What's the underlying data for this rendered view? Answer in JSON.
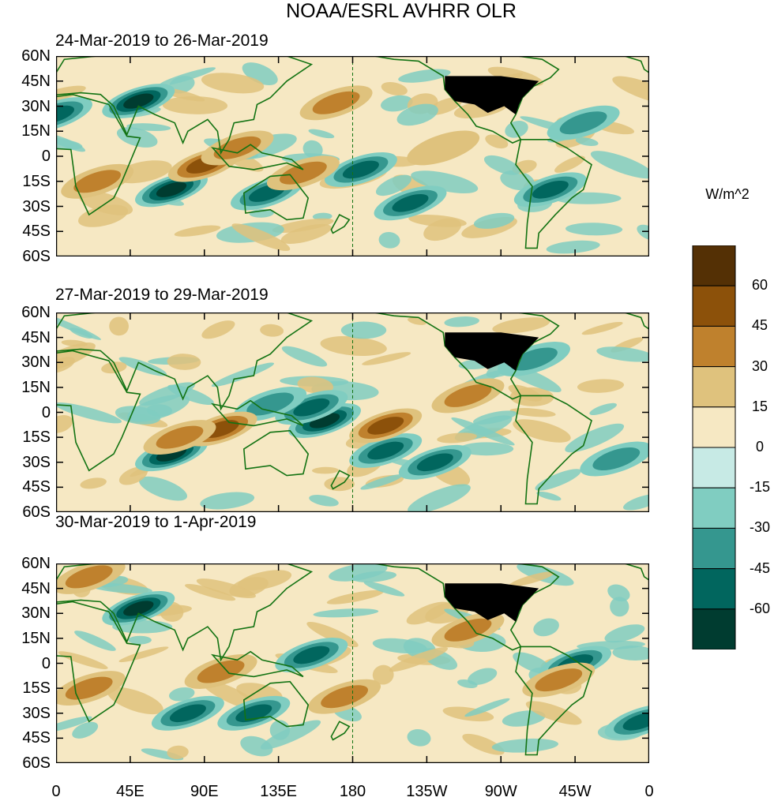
{
  "chart_data": {
    "type": "heatmap",
    "title": "NOAA/ESRL AVHRR OLR",
    "panels": [
      {
        "title": "24-Mar-2019 to 26-Mar-2019",
        "anomalies": [
          {
            "lon": 185,
            "lat": -8,
            "value": -55
          },
          {
            "lon": 215,
            "lat": -28,
            "value": -55
          },
          {
            "lon": 128,
            "lat": -22,
            "value": -45
          },
          {
            "lon": 70,
            "lat": -20,
            "value": -60
          },
          {
            "lon": 50,
            "lat": 33,
            "value": -60
          },
          {
            "lon": 0,
            "lat": 25,
            "value": -45
          },
          {
            "lon": 90,
            "lat": -5,
            "value": 45
          },
          {
            "lon": 110,
            "lat": 5,
            "value": 40
          },
          {
            "lon": 150,
            "lat": -10,
            "value": 35
          },
          {
            "lon": 25,
            "lat": -15,
            "value": 30
          },
          {
            "lon": 170,
            "lat": 32,
            "value": 30
          },
          {
            "lon": 235,
            "lat": 5,
            "value": 25
          },
          {
            "lon": 300,
            "lat": -20,
            "value": -45
          },
          {
            "lon": 320,
            "lat": 20,
            "value": -30
          }
        ]
      },
      {
        "title": "27-Mar-2019 to 29-Mar-2019",
        "anomalies": [
          {
            "lon": 163,
            "lat": -5,
            "value": -60
          },
          {
            "lon": 155,
            "lat": 3,
            "value": -50
          },
          {
            "lon": 200,
            "lat": -23,
            "value": -50
          },
          {
            "lon": 230,
            "lat": -30,
            "value": -55
          },
          {
            "lon": 70,
            "lat": -25,
            "value": -60
          },
          {
            "lon": 130,
            "lat": 5,
            "value": -40
          },
          {
            "lon": 290,
            "lat": 32,
            "value": -40
          },
          {
            "lon": 100,
            "lat": -10,
            "value": 45
          },
          {
            "lon": 200,
            "lat": -8,
            "value": 45
          },
          {
            "lon": 75,
            "lat": -15,
            "value": 35
          },
          {
            "lon": 250,
            "lat": 10,
            "value": 35
          },
          {
            "lon": 340,
            "lat": -28,
            "value": -40
          }
        ]
      },
      {
        "title": "30-Mar-2019 to 1-Apr-2019",
        "anomalies": [
          {
            "lon": 50,
            "lat": 33,
            "value": -60
          },
          {
            "lon": 315,
            "lat": 0,
            "value": -55
          },
          {
            "lon": 355,
            "lat": -35,
            "value": -50
          },
          {
            "lon": 155,
            "lat": 5,
            "value": -45
          },
          {
            "lon": 80,
            "lat": -30,
            "value": -50
          },
          {
            "lon": 120,
            "lat": -30,
            "value": -45
          },
          {
            "lon": 20,
            "lat": -15,
            "value": 40
          },
          {
            "lon": 100,
            "lat": -5,
            "value": 40
          },
          {
            "lon": 175,
            "lat": -20,
            "value": 40
          },
          {
            "lon": 250,
            "lat": 20,
            "value": 35
          },
          {
            "lon": 305,
            "lat": -10,
            "value": 30
          },
          {
            "lon": 20,
            "lat": 52,
            "value": 35
          }
        ]
      }
    ],
    "x_ticks": [
      "0",
      "45E",
      "90E",
      "135E",
      "180",
      "135W",
      "90W",
      "45W",
      "0"
    ],
    "y_ticks": [
      "60N",
      "45N",
      "30N",
      "15N",
      "0",
      "15S",
      "30S",
      "45S",
      "60S"
    ],
    "xlim": [
      0,
      360
    ],
    "ylim": [
      -60,
      60
    ],
    "colorbar": {
      "label": "W/m^2",
      "levels": [
        60,
        45,
        30,
        15,
        0,
        -15,
        -30,
        -45,
        -60
      ],
      "colors": [
        "#543005",
        "#8c510a",
        "#bf812d",
        "#dfc27d",
        "#f6e8c3",
        "#c7eae5",
        "#80cdc1",
        "#35978f",
        "#01665e",
        "#003c30"
      ]
    },
    "colors": {
      "coast": "#137313",
      "usa_mask": "#000000",
      "frame": "#000000"
    }
  }
}
